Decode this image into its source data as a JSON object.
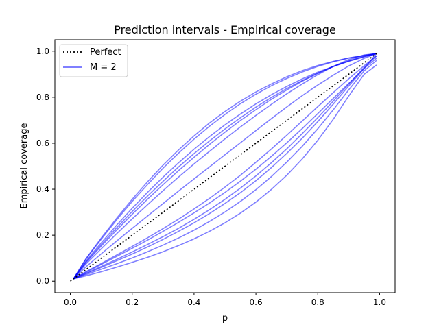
{
  "chart_data": {
    "type": "line",
    "title": "Prediction intervals - Empirical coverage",
    "xlabel": "p",
    "ylabel": "Empirical coverage",
    "xlim": [
      -0.05,
      1.05
    ],
    "ylim": [
      -0.05,
      1.05
    ],
    "xticks": [
      "0.0",
      "0.2",
      "0.4",
      "0.6",
      "0.8",
      "1.0"
    ],
    "yticks": [
      "0.0",
      "0.2",
      "0.4",
      "0.6",
      "0.8",
      "1.0"
    ],
    "xtick_values": [
      0.0,
      0.2,
      0.4,
      0.6,
      0.8,
      1.0
    ],
    "ytick_values": [
      0.0,
      0.2,
      0.4,
      0.6,
      0.8,
      1.0
    ],
    "grid": false,
    "legend_position": "top-left",
    "x": [
      0.01,
      0.05,
      0.1,
      0.15,
      0.2,
      0.25,
      0.3,
      0.35,
      0.4,
      0.45,
      0.5,
      0.55,
      0.6,
      0.65,
      0.7,
      0.75,
      0.8,
      0.85,
      0.9,
      0.95,
      0.99
    ],
    "series": [
      {
        "name": "Perfect",
        "style": "dotted",
        "color": "#000000",
        "x": [
          0.0,
          0.99
        ],
        "values": [
          0.0,
          0.99
        ]
      },
      {
        "name": "M = 2",
        "style": "solid",
        "color": "#0000ff",
        "opacity": 0.5,
        "curves": [
          [
            0.01,
            0.097,
            0.188,
            0.274,
            0.356,
            0.433,
            0.505,
            0.571,
            0.632,
            0.688,
            0.738,
            0.783,
            0.823,
            0.858,
            0.889,
            0.916,
            0.938,
            0.956,
            0.971,
            0.982,
            0.99
          ],
          [
            0.01,
            0.095,
            0.183,
            0.267,
            0.347,
            0.421,
            0.492,
            0.557,
            0.618,
            0.674,
            0.725,
            0.772,
            0.813,
            0.85,
            0.882,
            0.91,
            0.934,
            0.954,
            0.97,
            0.981,
            0.99
          ],
          [
            0.01,
            0.087,
            0.167,
            0.244,
            0.317,
            0.387,
            0.453,
            0.515,
            0.574,
            0.629,
            0.68,
            0.727,
            0.771,
            0.811,
            0.847,
            0.88,
            0.909,
            0.934,
            0.956,
            0.975,
            0.99
          ],
          [
            0.01,
            0.083,
            0.159,
            0.233,
            0.303,
            0.371,
            0.435,
            0.497,
            0.555,
            0.61,
            0.662,
            0.711,
            0.757,
            0.799,
            0.838,
            0.873,
            0.905,
            0.933,
            0.957,
            0.977,
            0.99
          ],
          [
            0.01,
            0.08,
            0.153,
            0.223,
            0.291,
            0.357,
            0.42,
            0.481,
            0.539,
            0.595,
            0.648,
            0.699,
            0.746,
            0.791,
            0.832,
            0.87,
            0.904,
            0.934,
            0.959,
            0.979,
            0.99
          ],
          [
            0.01,
            0.074,
            0.141,
            0.207,
            0.271,
            0.333,
            0.394,
            0.453,
            0.51,
            0.565,
            0.619,
            0.671,
            0.721,
            0.769,
            0.815,
            0.858,
            0.898,
            0.934,
            0.964,
            0.984,
            0.99
          ],
          [
            0.01,
            0.062,
            0.119,
            0.175,
            0.23,
            0.284,
            0.338,
            0.392,
            0.445,
            0.497,
            0.55,
            0.602,
            0.655,
            0.707,
            0.758,
            0.807,
            0.853,
            0.896,
            0.936,
            0.969,
            0.99
          ],
          [
            0.01,
            0.041,
            0.077,
            0.114,
            0.151,
            0.189,
            0.229,
            0.27,
            0.314,
            0.36,
            0.409,
            0.461,
            0.517,
            0.575,
            0.635,
            0.697,
            0.759,
            0.82,
            0.88,
            0.937,
            0.98
          ],
          [
            0.01,
            0.038,
            0.073,
            0.108,
            0.143,
            0.179,
            0.217,
            0.256,
            0.297,
            0.34,
            0.386,
            0.435,
            0.487,
            0.543,
            0.602,
            0.664,
            0.729,
            0.795,
            0.86,
            0.925,
            0.99
          ],
          [
            0.01,
            0.034,
            0.064,
            0.095,
            0.127,
            0.16,
            0.194,
            0.23,
            0.269,
            0.311,
            0.356,
            0.405,
            0.458,
            0.515,
            0.576,
            0.642,
            0.711,
            0.783,
            0.857,
            0.93,
            0.98
          ],
          [
            0.01,
            0.032,
            0.06,
            0.089,
            0.118,
            0.149,
            0.182,
            0.217,
            0.254,
            0.294,
            0.338,
            0.385,
            0.437,
            0.494,
            0.556,
            0.622,
            0.694,
            0.77,
            0.849,
            0.925,
            0.97
          ],
          [
            0.01,
            0.028,
            0.052,
            0.076,
            0.101,
            0.128,
            0.157,
            0.188,
            0.222,
            0.26,
            0.301,
            0.347,
            0.398,
            0.455,
            0.518,
            0.587,
            0.663,
            0.745,
            0.832,
            0.915,
            0.96
          ],
          [
            0.01,
            0.023,
            0.041,
            0.061,
            0.082,
            0.104,
            0.128,
            0.155,
            0.184,
            0.217,
            0.254,
            0.296,
            0.344,
            0.399,
            0.461,
            0.532,
            0.613,
            0.704,
            0.805,
            0.9,
            0.94
          ]
        ]
      }
    ]
  }
}
